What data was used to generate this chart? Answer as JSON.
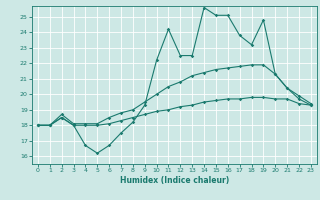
{
  "xlabel": "Humidex (Indice chaleur)",
  "background_color": "#cde8e5",
  "line_color": "#1a7a6e",
  "grid_color": "#ffffff",
  "xlim": [
    -0.5,
    23.5
  ],
  "ylim": [
    15.5,
    25.7
  ],
  "yticks": [
    16,
    17,
    18,
    19,
    20,
    21,
    22,
    23,
    24,
    25
  ],
  "xticks": [
    0,
    1,
    2,
    3,
    4,
    5,
    6,
    7,
    8,
    9,
    10,
    11,
    12,
    13,
    14,
    15,
    16,
    17,
    18,
    19,
    20,
    21,
    22,
    23
  ],
  "line1_x": [
    0,
    1,
    2,
    3,
    4,
    5,
    6,
    7,
    8,
    9,
    10,
    11,
    12,
    13,
    14,
    15,
    16,
    17,
    18,
    19,
    20,
    21,
    22,
    23
  ],
  "line1_y": [
    18.0,
    18.0,
    18.5,
    18.0,
    16.7,
    16.2,
    16.7,
    17.5,
    18.2,
    19.3,
    22.2,
    24.2,
    22.5,
    22.5,
    25.6,
    25.1,
    25.1,
    23.8,
    23.2,
    24.8,
    21.3,
    20.4,
    19.7,
    19.3
  ],
  "line2_x": [
    0,
    1,
    2,
    3,
    4,
    5,
    6,
    7,
    8,
    9,
    10,
    11,
    12,
    13,
    14,
    15,
    16,
    17,
    18,
    19,
    20,
    21,
    22,
    23
  ],
  "line2_y": [
    18.0,
    18.0,
    18.7,
    18.1,
    18.1,
    18.1,
    18.5,
    18.8,
    19.0,
    19.5,
    20.0,
    20.5,
    20.8,
    21.2,
    21.4,
    21.6,
    21.7,
    21.8,
    21.9,
    21.9,
    21.3,
    20.4,
    19.9,
    19.4
  ],
  "line3_x": [
    0,
    1,
    2,
    3,
    4,
    5,
    6,
    7,
    8,
    9,
    10,
    11,
    12,
    13,
    14,
    15,
    16,
    17,
    18,
    19,
    20,
    21,
    22,
    23
  ],
  "line3_y": [
    18.0,
    18.0,
    18.5,
    18.0,
    18.0,
    18.0,
    18.1,
    18.3,
    18.5,
    18.7,
    18.9,
    19.0,
    19.2,
    19.3,
    19.5,
    19.6,
    19.7,
    19.7,
    19.8,
    19.8,
    19.7,
    19.7,
    19.4,
    19.3
  ]
}
